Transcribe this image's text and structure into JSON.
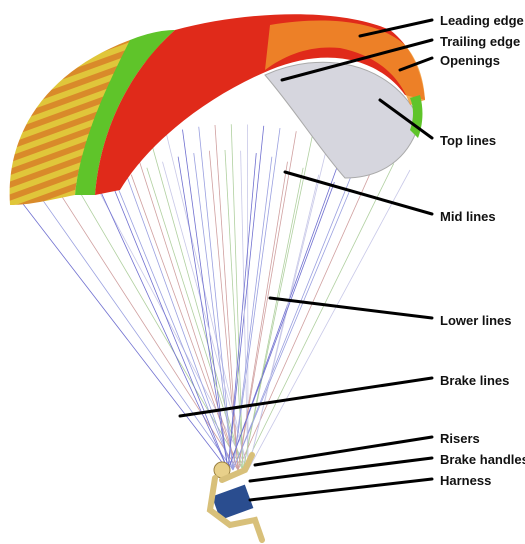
{
  "labels": [
    "Leading edge",
    "Trailing edge",
    "Openings",
    "Top lines",
    "Mid lines",
    "Lower lines",
    "Brake lines",
    "Risers",
    "Brake handles",
    "Harness"
  ]
}
